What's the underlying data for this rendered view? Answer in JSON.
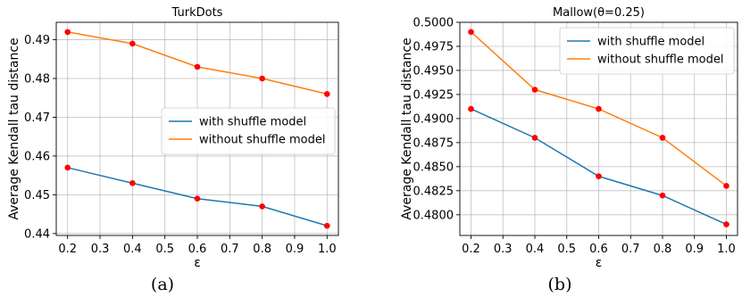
{
  "chart_data": [
    {
      "type": "line",
      "title": "TurkDots",
      "xlabel": "ε",
      "ylabel": "Average Kendall tau distance",
      "caption": "(a)",
      "x": [
        0.2,
        0.4,
        0.6,
        0.8,
        1.0
      ],
      "xlim": [
        0.165,
        1.035
      ],
      "ylim": [
        0.4395,
        0.4945
      ],
      "xticks": [
        0.2,
        0.3,
        0.4,
        0.5,
        0.6,
        0.7,
        0.8,
        0.9,
        1.0
      ],
      "xtick_labels": [
        "0.2",
        "0.3",
        "0.4",
        "0.5",
        "0.6",
        "0.7",
        "0.8",
        "0.9",
        "1.0"
      ],
      "yticks": [
        0.44,
        0.45,
        0.46,
        0.47,
        0.48,
        0.49
      ],
      "ytick_labels": [
        "0.44",
        "0.45",
        "0.46",
        "0.47",
        "0.48",
        "0.49"
      ],
      "grid": true,
      "legend_position": "center-right",
      "marker_color": "#ff0000",
      "series": [
        {
          "name": "with shuffle model",
          "color": "#1f77b4",
          "values": [
            0.457,
            0.453,
            0.449,
            0.447,
            0.442
          ]
        },
        {
          "name": "without shuffle model",
          "color": "#ff7f0e",
          "values": [
            0.492,
            0.489,
            0.483,
            0.48,
            0.476
          ]
        }
      ]
    },
    {
      "type": "line",
      "title": "Mallow(θ=0.25)",
      "xlabel": "ε",
      "ylabel": "Average Kendall tau distance",
      "caption": "(b)",
      "x": [
        0.2,
        0.4,
        0.6,
        0.8,
        1.0
      ],
      "xlim": [
        0.165,
        1.035
      ],
      "ylim": [
        0.47785,
        0.5
      ],
      "xticks": [
        0.2,
        0.3,
        0.4,
        0.5,
        0.6,
        0.7,
        0.8,
        0.9,
        1.0
      ],
      "xtick_labels": [
        "0.2",
        "0.3",
        "0.4",
        "0.5",
        "0.6",
        "0.7",
        "0.8",
        "0.9",
        "1.0"
      ],
      "yticks": [
        0.48,
        0.4825,
        0.485,
        0.4875,
        0.49,
        0.4925,
        0.495,
        0.4975,
        0.5
      ],
      "ytick_labels": [
        "0.4800",
        "0.4825",
        "0.4850",
        "0.4875",
        "0.4900",
        "0.4925",
        "0.4950",
        "0.4975",
        "0.5000"
      ],
      "grid": true,
      "legend_position": "top-right",
      "marker_color": "#ff0000",
      "series": [
        {
          "name": "with shuffle model",
          "color": "#1f77b4",
          "values": [
            0.491,
            0.488,
            0.484,
            0.482,
            0.479
          ]
        },
        {
          "name": "without shuffle model",
          "color": "#ff7f0e",
          "values": [
            0.499,
            0.493,
            0.491,
            0.488,
            0.483
          ]
        }
      ]
    }
  ]
}
